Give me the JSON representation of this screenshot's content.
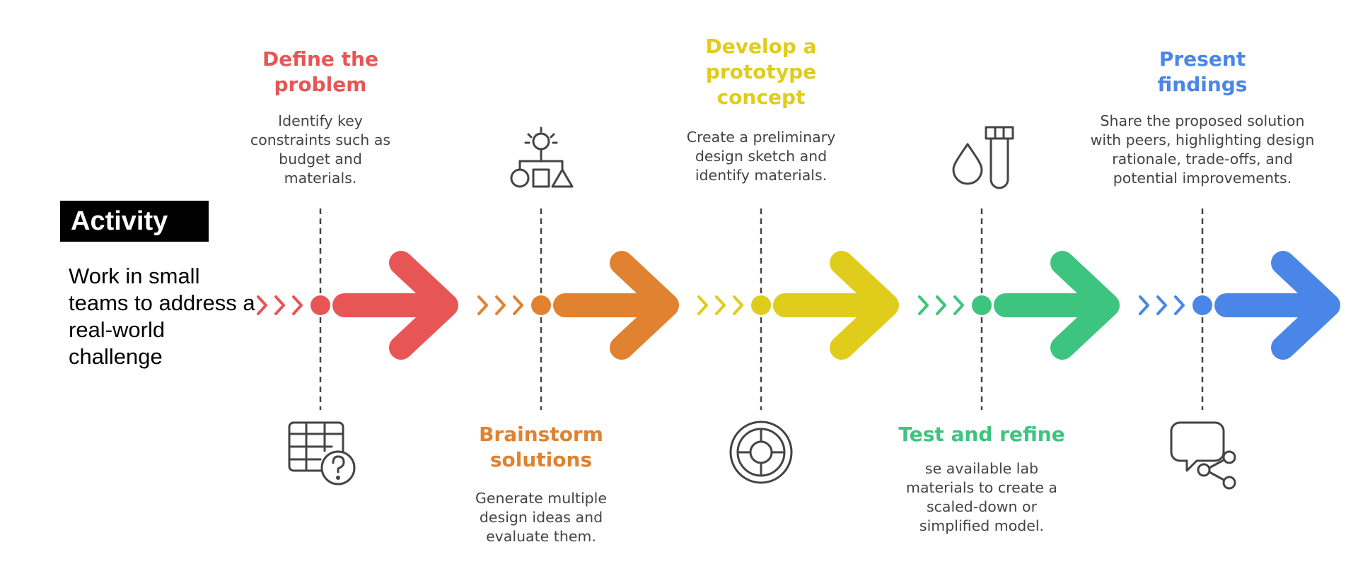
{
  "activity": {
    "label": "Activity",
    "description": "Work in small teams to address a real-world challenge"
  },
  "stages": [
    {
      "title": "Define the problem",
      "description": "Identify key constraints such as budget and materials.",
      "color": "#e85555",
      "icon": "table-question-icon"
    },
    {
      "title": "Brainstorm solutions",
      "description": "Generate multiple design ideas and evaluate them.",
      "color": "#e08230",
      "icon": "idea-shapes-icon"
    },
    {
      "title": "Develop a prototype concept",
      "description": "Create a preliminary design sketch and identify materials.",
      "color": "#e0cc1a",
      "icon": "target-circle-icon"
    },
    {
      "title": "Test and refine",
      "description": "se available lab materials to create a scaled-down or simplified model.",
      "color": "#3dc47e",
      "icon": "drop-test-tube-icon"
    },
    {
      "title": "Present findings",
      "description": "Share the proposed solution with peers, highlighting design rationale, trade-offs, and potential improvements.",
      "color": "#4a86e8",
      "icon": "chat-share-icon"
    }
  ]
}
